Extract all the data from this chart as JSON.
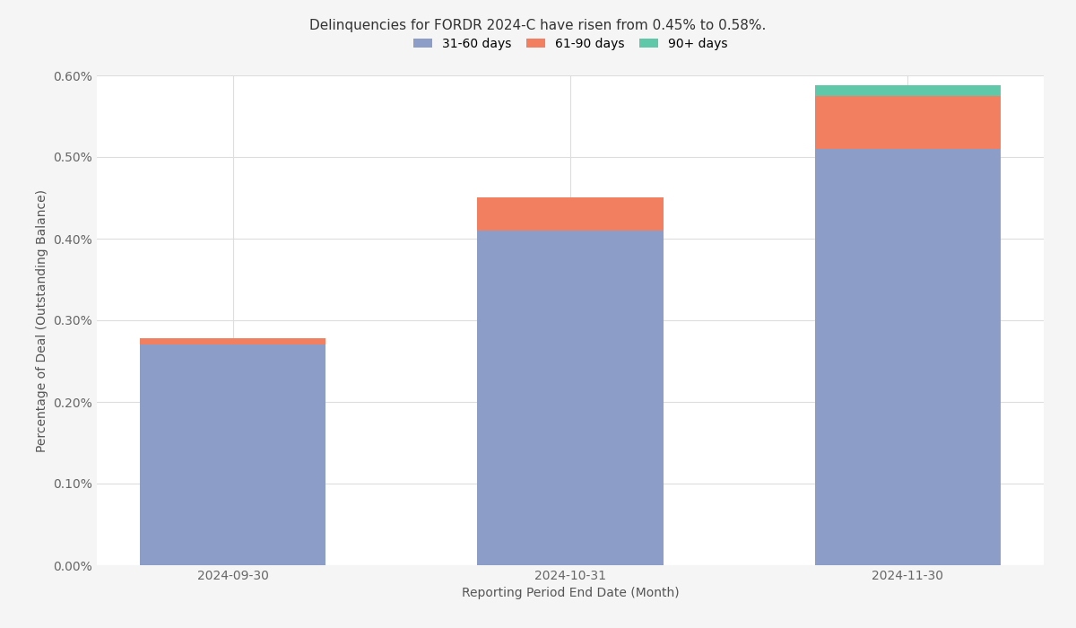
{
  "title": "Delinquencies for FORDR 2024-C have risen from 0.45% to 0.58%.",
  "xlabel": "Reporting Period End Date (Month)",
  "ylabel": "Percentage of Deal (Outstanding Balance)",
  "categories": [
    "2024-09-30",
    "2024-10-31",
    "2024-11-30"
  ],
  "series": {
    "31-60 days": [
      0.0027,
      0.0041,
      0.0051
    ],
    "61-90 days": [
      7.5e-05,
      0.0004,
      0.00065
    ],
    "90+ days": [
      5e-06,
      5e-06,
      0.00013
    ]
  },
  "colors": {
    "31-60 days": "#8C9DC8",
    "61-90 days": "#F28060",
    "90+ days": "#5EC8A8"
  },
  "ylim": [
    0,
    0.006
  ],
  "yticks": [
    0.0,
    0.001,
    0.002,
    0.003,
    0.004,
    0.005,
    0.006
  ],
  "ytick_labels": [
    "0.00%",
    "0.10%",
    "0.20%",
    "0.30%",
    "0.40%",
    "0.50%",
    "0.60%"
  ],
  "background_color": "#F5F5F5",
  "plot_background": "#FFFFFF",
  "title_fontsize": 11,
  "label_fontsize": 10,
  "tick_fontsize": 10,
  "legend_fontsize": 10,
  "bar_width": 0.55
}
